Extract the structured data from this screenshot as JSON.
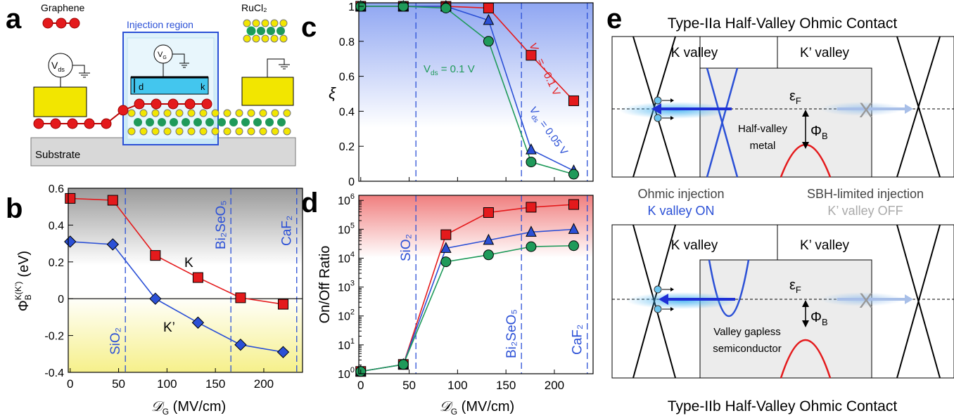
{
  "panel_letters": {
    "a": "a",
    "b": "b",
    "c": "c",
    "d": "d",
    "e": "e"
  },
  "panel_a": {
    "graphene_legend": "Graphene",
    "rucl2_legend": "RuCl₂",
    "injection_region": "Injection region",
    "vds_label": "V",
    "vds_sub": "ds",
    "vg_label": "V",
    "vg_sub": "G",
    "d_label": "d",
    "k_label": "k",
    "substrate": "Substrate"
  },
  "dielectric_labels": {
    "sio2": "SiO₂",
    "bi2seo5": "Bi₂SeO₅",
    "caf2": "CaF₂",
    "positions": [
      57,
      166,
      234
    ]
  },
  "chart_data": [
    {
      "panel": "b",
      "type": "line",
      "xlabel": "𝒟_G (MV/cm)",
      "ylabel": "Φ_B^K(K') (eV)",
      "xlim": [
        -2,
        240
      ],
      "ylim": [
        -0.4,
        0.6
      ],
      "xticks": [
        "0",
        "50",
        "100",
        "150",
        "200"
      ],
      "yticks": [
        "-0.4",
        "-0.2",
        "0",
        "0.2",
        "0.4",
        "0.6"
      ],
      "series": [
        {
          "name": "K",
          "x": [
            0,
            44,
            88,
            132,
            176,
            220
          ],
          "y": [
            0.545,
            0.535,
            0.235,
            0.115,
            0.005,
            -0.03
          ],
          "color": "#e41a1c",
          "marker": "square"
        },
        {
          "name": "K’",
          "x": [
            0,
            44,
            88,
            132,
            176,
            220
          ],
          "y": [
            0.31,
            0.295,
            0.0,
            -0.13,
            -0.25,
            -0.29
          ],
          "color": "#2b50d6",
          "marker": "diamond"
        }
      ]
    },
    {
      "panel": "c",
      "type": "line",
      "xlabel": "",
      "ylabel": "ξ",
      "xlim": [
        -2,
        240
      ],
      "ylim": [
        0,
        1.02
      ],
      "yticks": [
        "0",
        "0.2",
        "0.4",
        "0.6",
        "0.8",
        "1"
      ],
      "series": [
        {
          "name": "V_ds = −0.1 V",
          "x": [
            0,
            44,
            88,
            132,
            176,
            220
          ],
          "y": [
            1.0,
            1.0,
            1.0,
            0.99,
            0.72,
            0.46
          ],
          "color": "#e41a1c",
          "marker": "square"
        },
        {
          "name": "V_ds = 0.05 V",
          "x": [
            0,
            44,
            88,
            132,
            176,
            220
          ],
          "y": [
            1.0,
            1.0,
            1.0,
            0.92,
            0.18,
            0.06
          ],
          "color": "#2b50d6",
          "marker": "triangle"
        },
        {
          "name": "V_ds = 0.1 V",
          "x": [
            0,
            44,
            88,
            132,
            176,
            220
          ],
          "y": [
            1.0,
            1.0,
            0.99,
            0.8,
            0.11,
            0.04
          ],
          "color": "#1f9a5a",
          "marker": "circle"
        }
      ]
    },
    {
      "panel": "d",
      "type": "line",
      "yscale": "log",
      "xlabel": "𝒟_G (MV/cm)",
      "ylabel": "On/Off Ratio",
      "xlim": [
        -2,
        240
      ],
      "ylim": [
        1,
        1500000
      ],
      "xticks": [
        "0",
        "50",
        "100",
        "150",
        "200"
      ],
      "series": [
        {
          "name": "V_ds = −0.1 V",
          "x": [
            0,
            44,
            88,
            132,
            176,
            220
          ],
          "y": [
            1.2,
            2.1,
            65000,
            380000,
            580000,
            720000
          ],
          "color": "#e41a1c",
          "marker": "square"
        },
        {
          "name": "V_ds = 0.05 V",
          "x": [
            0,
            44,
            88,
            132,
            176,
            220
          ],
          "y": [
            1.2,
            2.1,
            22000,
            42000,
            80000,
            100000
          ],
          "color": "#2b50d6",
          "marker": "triangle"
        },
        {
          "name": "V_ds = 0.1 V",
          "x": [
            0,
            44,
            88,
            132,
            176,
            220
          ],
          "y": [
            1.2,
            2.1,
            7500,
            13000,
            25000,
            27000
          ],
          "color": "#1f9a5a",
          "marker": "circle"
        }
      ]
    }
  ],
  "panel_b_text": {
    "ylabel_main": "Φ",
    "ylabel_sub": "B",
    "ylabel_sup": "K(K’)",
    "ylabel_unit": "(eV)",
    "curve_k": "K",
    "curve_kp": "K’"
  },
  "panel_c_text": {
    "vds_red": "V",
    "vds_red_sub": "ds",
    "vds_red_val": " = −0.1 V",
    "vds_blue": "V",
    "vds_blue_sub": "ds",
    "vds_blue_val": " = 0.05 V",
    "vds_green": "V",
    "vds_green_sub": "ds",
    "vds_green_val": " = 0.1 V"
  },
  "axis_x": {
    "main": "𝒟",
    "sub": "G",
    "unit": " (MV/cm)"
  },
  "panel_e": {
    "title_top": "Type-IIa Half-Valley Ohmic Contact",
    "title_bottom": "Type-IIb Half-Valley Ohmic Contact",
    "k_valley": "K valley",
    "kp_valley": "K’ valley",
    "ef": "ε",
    "ef_sub": "F",
    "phi": "Φ",
    "phi_sub": "B",
    "metal_top_1": "Half-valley",
    "metal_top_2": "metal",
    "metal_bot_1": "Valley gapless",
    "metal_bot_2": "semiconductor",
    "ohmic_1": "Ohmic injection",
    "ohmic_2": "K valley ON",
    "sbh_1": "SBH-limited injection",
    "sbh_2": "K’ valley OFF",
    "x_mark": "X"
  }
}
